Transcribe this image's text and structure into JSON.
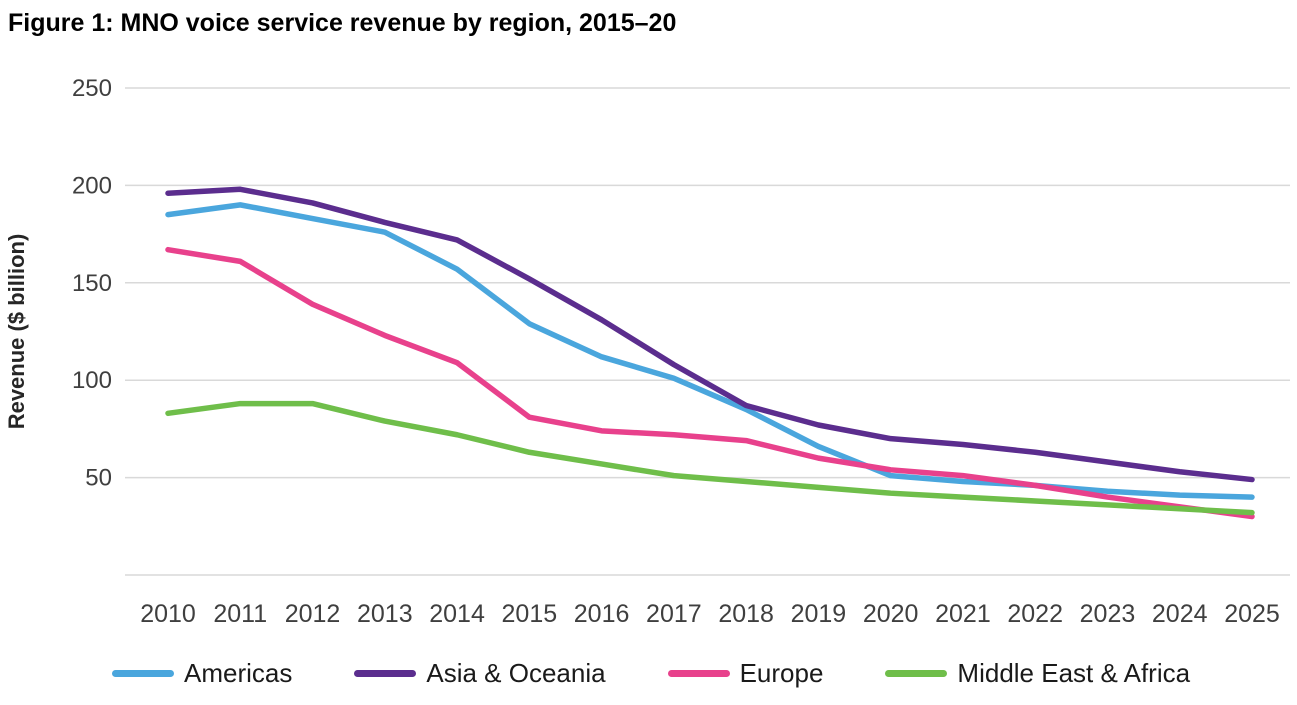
{
  "title": "Figure 1: MNO voice service revenue by region, 2015–20",
  "chart_data": {
    "type": "line",
    "title": "Figure 1: MNO voice service revenue by region, 2015–20",
    "xlabel": "",
    "ylabel": "Revenue ($ billion)",
    "x": [
      2010,
      2011,
      2012,
      2013,
      2014,
      2015,
      2016,
      2017,
      2018,
      2019,
      2020,
      2021,
      2022,
      2023,
      2024,
      2025
    ],
    "y_ticks": [
      50,
      100,
      150,
      200,
      250
    ],
    "ylim": [
      0,
      250
    ],
    "grid": true,
    "gridline_color": "#d9d9d9",
    "legend_position": "bottom",
    "series": [
      {
        "name": "Americas",
        "color": "#4aa6dd",
        "values": [
          185,
          190,
          183,
          176,
          157,
          129,
          112,
          101,
          85,
          66,
          51,
          48,
          46,
          43,
          41,
          40
        ]
      },
      {
        "name": "Asia & Oceania",
        "color": "#5b2d8e",
        "values": [
          196,
          198,
          191,
          181,
          172,
          152,
          131,
          108,
          87,
          77,
          70,
          67,
          63,
          58,
          53,
          49
        ]
      },
      {
        "name": "Europe",
        "color": "#e8418c",
        "values": [
          167,
          161,
          139,
          123,
          109,
          81,
          74,
          72,
          69,
          60,
          54,
          51,
          46,
          40,
          35,
          30
        ]
      },
      {
        "name": "Middle East & Africa",
        "color": "#6fbe4a",
        "values": [
          83,
          88,
          88,
          79,
          72,
          63,
          57,
          51,
          48,
          45,
          42,
          40,
          38,
          36,
          34,
          32
        ]
      }
    ]
  }
}
